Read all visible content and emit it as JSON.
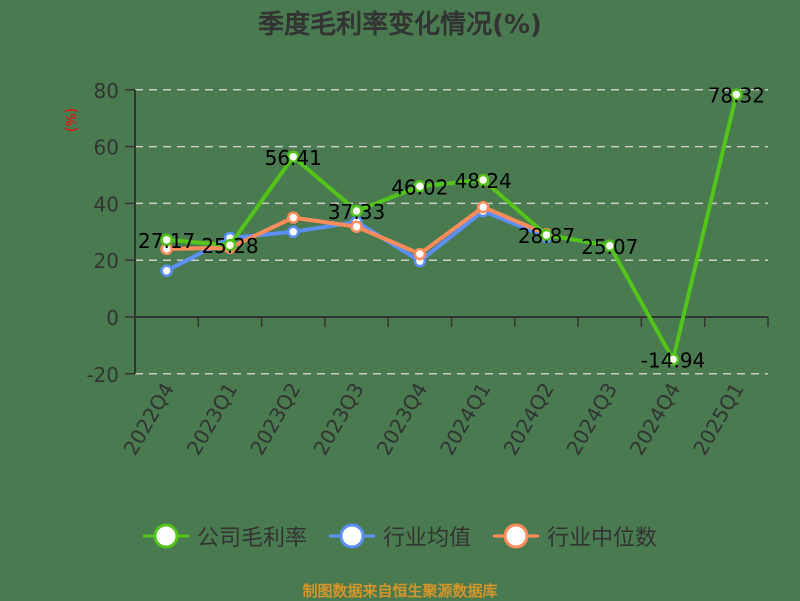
{
  "title": "季度毛利率变化情况(%)",
  "y_unit": "(%)",
  "footer": "制图数据来自恒生聚源数据库",
  "colors": {
    "background": "#4a7a50",
    "company": "#52c41a",
    "industry_avg": "#5b8ff9",
    "industry_median": "#ff8c5a",
    "axis": "#333333",
    "grid": "#cccccc",
    "unit_label": "#ff0000",
    "footer": "#d4952a"
  },
  "legend": [
    {
      "name": "公司毛利率",
      "color": "#52c41a"
    },
    {
      "name": "行业均值",
      "color": "#5b8ff9"
    },
    {
      "name": "行业中位数",
      "color": "#ff8c5a"
    }
  ],
  "chart_data": {
    "type": "line",
    "title": "季度毛利率变化情况(%)",
    "xlabel": "",
    "ylabel": "(%)",
    "ylim": [
      -20,
      80
    ],
    "yticks": [
      -20,
      0,
      20,
      40,
      60,
      80
    ],
    "grid": true,
    "legend_position": "bottom",
    "categories": [
      "2022Q4",
      "2023Q1",
      "2023Q2",
      "2023Q3",
      "2023Q4",
      "2024Q1",
      "2024Q2",
      "2024Q3",
      "2024Q4",
      "2025Q1"
    ],
    "series": [
      {
        "name": "公司毛利率",
        "values": [
          27.17,
          25.28,
          56.41,
          37.33,
          46.02,
          48.24,
          28.87,
          25.07,
          -14.94,
          78.32
        ],
        "labels_shown": true
      },
      {
        "name": "行业均值",
        "values": [
          16.3,
          27.8,
          30.0,
          33.5,
          19.7,
          37.3,
          28.2,
          null,
          null,
          null
        ]
      },
      {
        "name": "行业中位数",
        "values": [
          24.0,
          24.4,
          35.0,
          31.8,
          22.2,
          38.7,
          29.2,
          null,
          null,
          null
        ]
      }
    ]
  }
}
